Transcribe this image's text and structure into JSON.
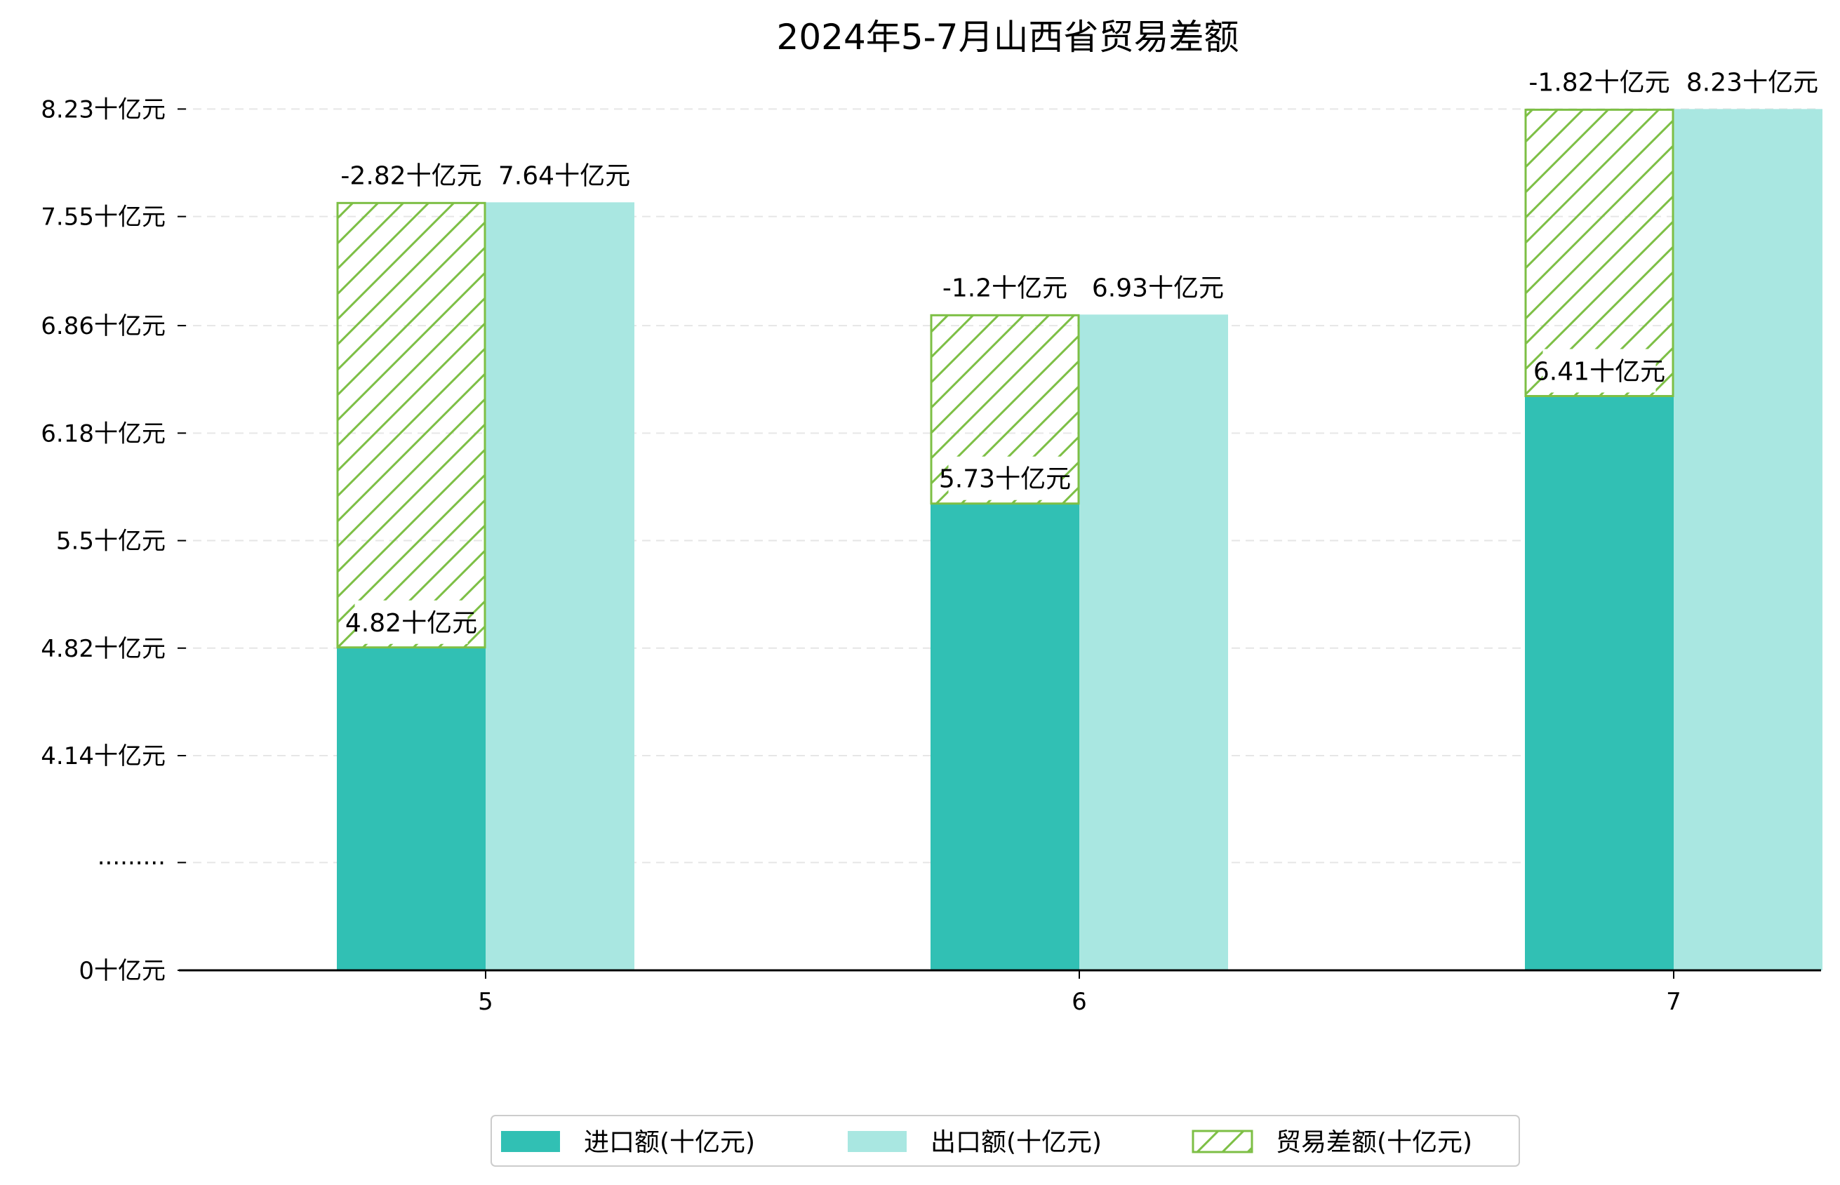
{
  "chart_data": {
    "type": "bar",
    "title": "2024年5-7月山西省贸易差额",
    "xlabel": "",
    "ylabel": "",
    "categories": [
      "5",
      "6",
      "7"
    ],
    "series": [
      {
        "name": "进口额(十亿元)",
        "values": [
          4.82,
          5.73,
          6.41
        ],
        "color": "#31c0b4"
      },
      {
        "name": "出口额(十亿元)",
        "values": [
          7.64,
          6.93,
          8.23
        ],
        "color": "#a9e7e1"
      },
      {
        "name": "贸易差额(十亿元)",
        "values": [
          -2.82,
          -1.2,
          -1.82
        ],
        "color": "#7dbf45",
        "style": "hatched"
      }
    ],
    "data_labels": {
      "import": [
        "4.82十亿元",
        "5.73十亿元",
        "6.41十亿元"
      ],
      "export": [
        "7.64十亿元",
        "6.93十亿元",
        "8.23十亿元"
      ],
      "balance": [
        "-2.82十亿元",
        "-1.2十亿元",
        "-1.82十亿元"
      ]
    },
    "y_ticks": [
      "0十亿元",
      "·········",
      "4.14十亿元",
      "4.82十亿元",
      "5.5十亿元",
      "6.18十亿元",
      "6.86十亿元",
      "7.55十亿元",
      "8.23十亿元"
    ],
    "y_axis_break": true,
    "grid": true,
    "legend_position": "bottom-center"
  }
}
